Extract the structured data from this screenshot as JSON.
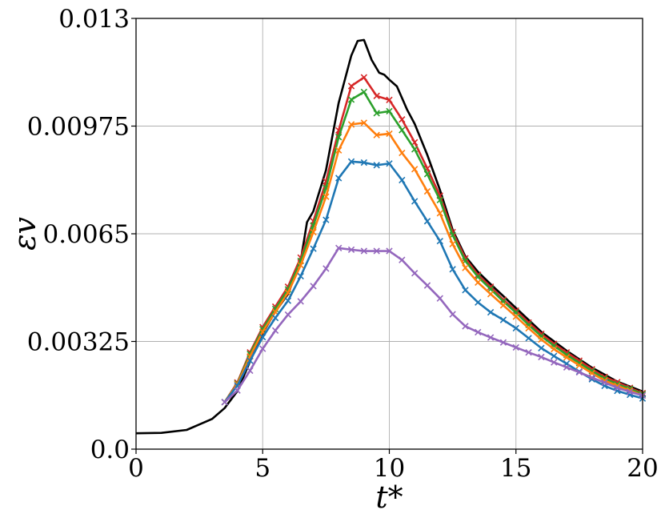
{
  "chart_data": {
    "type": "line",
    "title": "",
    "xlabel": "t*",
    "ylabel": "εv",
    "xlim": [
      0,
      20
    ],
    "ylim": [
      0,
      0.013
    ],
    "grid": true,
    "x_ticks": [
      {
        "value": 0,
        "label": "0"
      },
      {
        "value": 5,
        "label": "5"
      },
      {
        "value": 10,
        "label": "10"
      },
      {
        "value": 15,
        "label": "15"
      },
      {
        "value": 20,
        "label": "20"
      }
    ],
    "y_ticks": [
      {
        "value": 0,
        "label": "0.0"
      },
      {
        "value": 0.00325,
        "label": "0.00325"
      },
      {
        "value": 0.0065,
        "label": "0.0065"
      },
      {
        "value": 0.00975,
        "label": "0.00975"
      },
      {
        "value": 0.013,
        "label": "0.013"
      }
    ],
    "series": [
      {
        "color": "#000000",
        "marker": "none",
        "points": [
          [
            0,
            0.00048
          ],
          [
            1,
            0.00049
          ],
          [
            2,
            0.00058
          ],
          [
            3,
            0.00091
          ],
          [
            3.5,
            0.00124
          ],
          [
            4,
            0.00175
          ],
          [
            4.5,
            0.00265
          ],
          [
            5,
            0.0035
          ],
          [
            5.5,
            0.00415
          ],
          [
            6,
            0.00468
          ],
          [
            6.5,
            0.00568
          ],
          [
            6.75,
            0.00685
          ],
          [
            7,
            0.00718
          ],
          [
            7.5,
            0.00842
          ],
          [
            8,
            0.01045
          ],
          [
            8.5,
            0.01188
          ],
          [
            8.75,
            0.01232
          ],
          [
            9,
            0.01235
          ],
          [
            9.3,
            0.01175
          ],
          [
            9.6,
            0.01136
          ],
          [
            9.8,
            0.0113
          ],
          [
            10,
            0.01115
          ],
          [
            10.3,
            0.01095
          ],
          [
            10.7,
            0.01025
          ],
          [
            11,
            0.00982
          ],
          [
            11.5,
            0.00888
          ],
          [
            12,
            0.00782
          ],
          [
            12.5,
            0.00662
          ],
          [
            13,
            0.00582
          ],
          [
            13.5,
            0.00535
          ],
          [
            14,
            0.00498
          ],
          [
            15,
            0.00426
          ],
          [
            16,
            0.00354
          ],
          [
            17,
            0.00297
          ],
          [
            18,
            0.00246
          ],
          [
            19,
            0.00204
          ],
          [
            20,
            0.00174
          ]
        ]
      },
      {
        "color": "#d62728",
        "marker": "x",
        "points": [
          [
            3.5,
            0.00142
          ],
          [
            4,
            0.00201
          ],
          [
            4.5,
            0.00292
          ],
          [
            5,
            0.00368
          ],
          [
            5.5,
            0.0043
          ],
          [
            6,
            0.0049
          ],
          [
            6.5,
            0.00578
          ],
          [
            7,
            0.00688
          ],
          [
            7.5,
            0.00808
          ],
          [
            8,
            0.00962
          ],
          [
            8.5,
            0.01096
          ],
          [
            9,
            0.01122
          ],
          [
            9.5,
            0.01066
          ],
          [
            10,
            0.01054
          ],
          [
            10.5,
            0.00995
          ],
          [
            11,
            0.00926
          ],
          [
            11.5,
            0.00847
          ],
          [
            12,
            0.00765
          ],
          [
            12.5,
            0.00655
          ],
          [
            13,
            0.00576
          ],
          [
            13.5,
            0.00526
          ],
          [
            14,
            0.0049
          ],
          [
            14.5,
            0.00451
          ],
          [
            15,
            0.00418
          ],
          [
            15.5,
            0.00382
          ],
          [
            16,
            0.00348
          ],
          [
            16.5,
            0.00318
          ],
          [
            17,
            0.00292
          ],
          [
            17.5,
            0.00267
          ],
          [
            18,
            0.00241
          ],
          [
            18.5,
            0.00218
          ],
          [
            19,
            0.00202
          ],
          [
            19.5,
            0.00185
          ],
          [
            20,
            0.00169
          ]
        ]
      },
      {
        "color": "#2ca02c",
        "marker": "x",
        "points": [
          [
            3.5,
            0.00142
          ],
          [
            4,
            0.00198
          ],
          [
            4.5,
            0.00287
          ],
          [
            5,
            0.00362
          ],
          [
            5.5,
            0.00423
          ],
          [
            6,
            0.00482
          ],
          [
            6.5,
            0.00568
          ],
          [
            7,
            0.00675
          ],
          [
            7.5,
            0.00788
          ],
          [
            8,
            0.00942
          ],
          [
            8.5,
            0.01055
          ],
          [
            9,
            0.01078
          ],
          [
            9.5,
            0.01014
          ],
          [
            10,
            0.0102
          ],
          [
            10.5,
            0.00963
          ],
          [
            11,
            0.00905
          ],
          [
            11.5,
            0.0083
          ],
          [
            12,
            0.00752
          ],
          [
            12.5,
            0.00646
          ],
          [
            13,
            0.00568
          ],
          [
            13.5,
            0.0052
          ],
          [
            14,
            0.00483
          ],
          [
            14.5,
            0.00446
          ],
          [
            15,
            0.00412
          ],
          [
            15.5,
            0.00375
          ],
          [
            16,
            0.00341
          ],
          [
            16.5,
            0.00312
          ],
          [
            17,
            0.00285
          ],
          [
            17.5,
            0.0026
          ],
          [
            18,
            0.00236
          ],
          [
            18.5,
            0.00213
          ],
          [
            19,
            0.00196
          ],
          [
            19.5,
            0.00182
          ],
          [
            20,
            0.00166
          ]
        ]
      },
      {
        "color": "#ff7f0e",
        "marker": "x",
        "points": [
          [
            3.5,
            0.00142
          ],
          [
            4,
            0.00196
          ],
          [
            4.5,
            0.0028
          ],
          [
            5,
            0.00354
          ],
          [
            5.5,
            0.00414
          ],
          [
            6,
            0.00472
          ],
          [
            6.5,
            0.00555
          ],
          [
            7,
            0.00655
          ],
          [
            7.5,
            0.00762
          ],
          [
            8,
            0.00902
          ],
          [
            8.5,
            0.0098
          ],
          [
            9,
            0.00985
          ],
          [
            9.5,
            0.00948
          ],
          [
            10,
            0.00952
          ],
          [
            10.5,
            0.00894
          ],
          [
            11,
            0.00845
          ],
          [
            11.5,
            0.00778
          ],
          [
            12,
            0.00712
          ],
          [
            12.5,
            0.00619
          ],
          [
            13,
            0.00547
          ],
          [
            13.5,
            0.00503
          ],
          [
            14,
            0.00468
          ],
          [
            14.5,
            0.00434
          ],
          [
            15,
            0.004
          ],
          [
            15.5,
            0.00365
          ],
          [
            16,
            0.00331
          ],
          [
            16.5,
            0.00302
          ],
          [
            17,
            0.00277
          ],
          [
            17.5,
            0.00253
          ],
          [
            18,
            0.00229
          ],
          [
            18.5,
            0.00207
          ],
          [
            19,
            0.00191
          ],
          [
            19.5,
            0.00177
          ],
          [
            20,
            0.00162
          ]
        ]
      },
      {
        "color": "#1f77b4",
        "marker": "x",
        "points": [
          [
            3.5,
            0.00142
          ],
          [
            4,
            0.00192
          ],
          [
            4.5,
            0.00267
          ],
          [
            5,
            0.00338
          ],
          [
            5.5,
            0.00396
          ],
          [
            6,
            0.00448
          ],
          [
            6.5,
            0.00522
          ],
          [
            7,
            0.00605
          ],
          [
            7.5,
            0.00692
          ],
          [
            8,
            0.00818
          ],
          [
            8.5,
            0.00868
          ],
          [
            9,
            0.00865
          ],
          [
            9.5,
            0.00857
          ],
          [
            10,
            0.00862
          ],
          [
            10.5,
            0.00812
          ],
          [
            11,
            0.00748
          ],
          [
            11.5,
            0.00688
          ],
          [
            12,
            0.00628
          ],
          [
            12.5,
            0.00543
          ],
          [
            13,
            0.0048
          ],
          [
            13.5,
            0.00443
          ],
          [
            14,
            0.00413
          ],
          [
            14.5,
            0.0039
          ],
          [
            15,
            0.00365
          ],
          [
            15.5,
            0.00335
          ],
          [
            16,
            0.00305
          ],
          [
            16.5,
            0.00281
          ],
          [
            17,
            0.00258
          ],
          [
            17.5,
            0.00234
          ],
          [
            18,
            0.00211
          ],
          [
            18.5,
            0.00191
          ],
          [
            19,
            0.00176
          ],
          [
            19.5,
            0.00164
          ],
          [
            20,
            0.00153
          ]
        ]
      },
      {
        "color": "#9467bd",
        "marker": "x",
        "points": [
          [
            3.5,
            0.00142
          ],
          [
            4,
            0.00177
          ],
          [
            4.5,
            0.00237
          ],
          [
            5,
            0.00303
          ],
          [
            5.5,
            0.00358
          ],
          [
            6,
            0.00406
          ],
          [
            6.5,
            0.00446
          ],
          [
            7,
            0.00492
          ],
          [
            7.5,
            0.00545
          ],
          [
            8,
            0.00607
          ],
          [
            8.5,
            0.00602
          ],
          [
            9,
            0.00598
          ],
          [
            9.5,
            0.00598
          ],
          [
            10,
            0.00598
          ],
          [
            10.5,
            0.00571
          ],
          [
            11,
            0.00531
          ],
          [
            11.5,
            0.00494
          ],
          [
            12,
            0.00455
          ],
          [
            12.5,
            0.00407
          ],
          [
            13,
            0.00371
          ],
          [
            13.5,
            0.00353
          ],
          [
            14,
            0.00337
          ],
          [
            14.5,
            0.00322
          ],
          [
            15,
            0.00307
          ],
          [
            15.5,
            0.00292
          ],
          [
            16,
            0.00278
          ],
          [
            16.5,
            0.00262
          ],
          [
            17,
            0.00247
          ],
          [
            17.5,
            0.00232
          ],
          [
            18,
            0.00216
          ],
          [
            18.5,
            0.00201
          ],
          [
            19,
            0.00185
          ],
          [
            19.5,
            0.00173
          ],
          [
            20,
            0.00162
          ]
        ]
      }
    ]
  }
}
